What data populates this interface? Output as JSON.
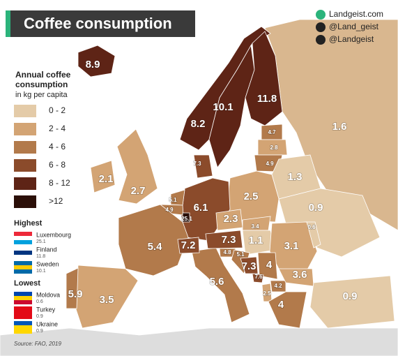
{
  "title": "Coffee consumption",
  "social": [
    "Landgeist.com",
    "@Land_geist",
    "@Landgeist"
  ],
  "legend": {
    "title": [
      "Annual coffee",
      "consumption",
      "in kg per capita"
    ],
    "items": [
      {
        "label": "0 - 2",
        "color": "#e4cba8"
      },
      {
        "label": "2 - 4",
        "color": "#d3a474"
      },
      {
        "label": "4 - 6",
        "color": "#b27a4b"
      },
      {
        "label": "6 - 8",
        "color": "#8b4b2b"
      },
      {
        "label": "8 - 12",
        "color": "#5e2416"
      },
      {
        "label": ">12",
        "color": "#2b0f08"
      }
    ]
  },
  "highest": {
    "heading": "Highest",
    "entries": [
      {
        "name": "Luxembourg",
        "value": 25.1
      },
      {
        "name": "Finland",
        "value": 11.8
      },
      {
        "name": "Sweden",
        "value": 10.1
      }
    ]
  },
  "lowest": {
    "heading": "Lowest",
    "entries": [
      {
        "name": "Moldova",
        "value": 0.6
      },
      {
        "name": "Turkey",
        "value": 0.9
      },
      {
        "name": "Ukraine",
        "value": 0.9
      }
    ]
  },
  "source": "Source: FAO, 2019",
  "map_labels": [
    8.9,
    11.8,
    10.1,
    8.2,
    1.6,
    4.7,
    2.8,
    4.9,
    7.3,
    2.1,
    2.7,
    1.3,
    2.5,
    0.9,
    6.1,
    5.1,
    4.9,
    25.1,
    2.3,
    3.4,
    0.6,
    5.4,
    7.2,
    7.3,
    1.1,
    3.1,
    4.8,
    5.1,
    7.3,
    4,
    3.6,
    7.6,
    4.2,
    2.5,
    4,
    5.6,
    5.9,
    3.5,
    0.9
  ]
}
